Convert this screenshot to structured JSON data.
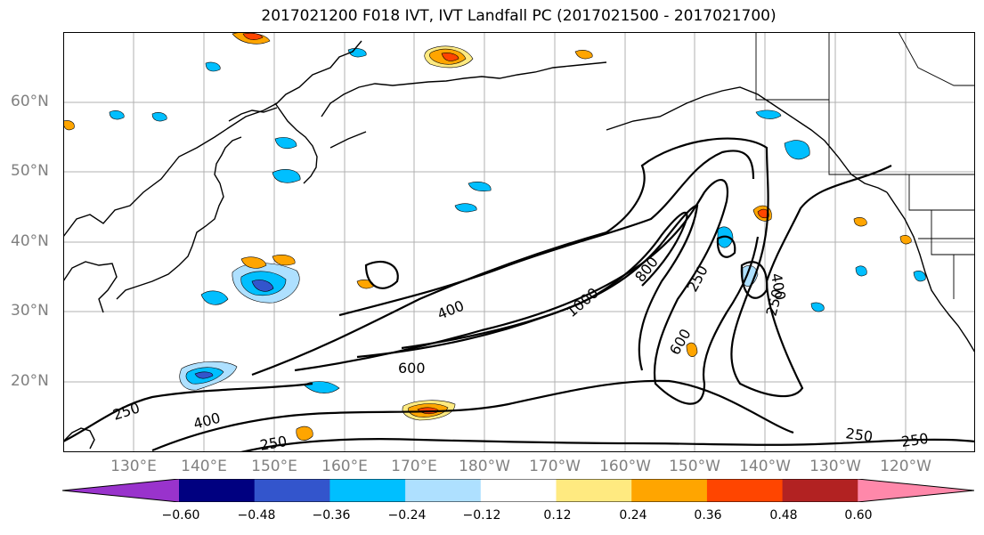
{
  "title": "2017021200 F018 IVT, IVT Landfall PC (2017021500 - 2017021700)",
  "map": {
    "lat_labels": [
      "60°N",
      "50°N",
      "40°N",
      "30°N",
      "20°N"
    ],
    "lon_labels": [
      "130°E",
      "140°E",
      "150°E",
      "160°E",
      "170°E",
      "180°W",
      "170°W",
      "160°W",
      "150°W",
      "140°W",
      "130°W",
      "120°W"
    ],
    "ivt_contour_labels": [
      "400",
      "1000",
      "800",
      "250",
      "400",
      "250",
      "600",
      "600",
      "250",
      "400",
      "250",
      "250",
      "250"
    ]
  },
  "colorbar": {
    "ticks": [
      "−0.60",
      "−0.48",
      "−0.36",
      "−0.24",
      "−0.12",
      "0.12",
      "0.24",
      "0.36",
      "0.48",
      "0.60"
    ],
    "colors": [
      "#9933cc",
      "#000080",
      "#3355cc",
      "#00bfff",
      "#aee0ff",
      "#ffffff",
      "#ffea80",
      "#ffa500",
      "#ff4500",
      "#b22222",
      "#ff88aa"
    ]
  }
}
